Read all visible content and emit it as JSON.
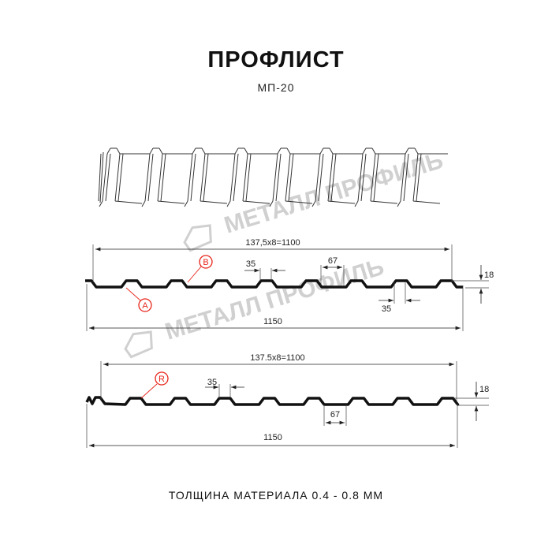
{
  "header": {
    "title": "ПРОФЛИСТ",
    "subtitle": "МП-20"
  },
  "watermark": {
    "text": "МЕТАЛЛ ПРОФИЛЬ"
  },
  "profile_top": {
    "pitch_label": "137,5x8=1100",
    "width_label": "1150",
    "crest_label": "35",
    "crest_label_2": "35",
    "valley_label": "67",
    "height_label": "18",
    "marker_a": "A",
    "marker_b": "B"
  },
  "profile_bottom": {
    "pitch_label": "137.5x8=1100",
    "width_label": "1150",
    "crest_label": "35",
    "valley_label": "67",
    "height_label": "18",
    "marker_r": "R"
  },
  "footer": {
    "thickness": "ТОЛЩИНА МАТЕРИАЛА 0.4 - 0.8 ММ"
  },
  "colors": {
    "line": "#111111",
    "marker": "#e8261c",
    "watermark": "#d0d0d0"
  }
}
